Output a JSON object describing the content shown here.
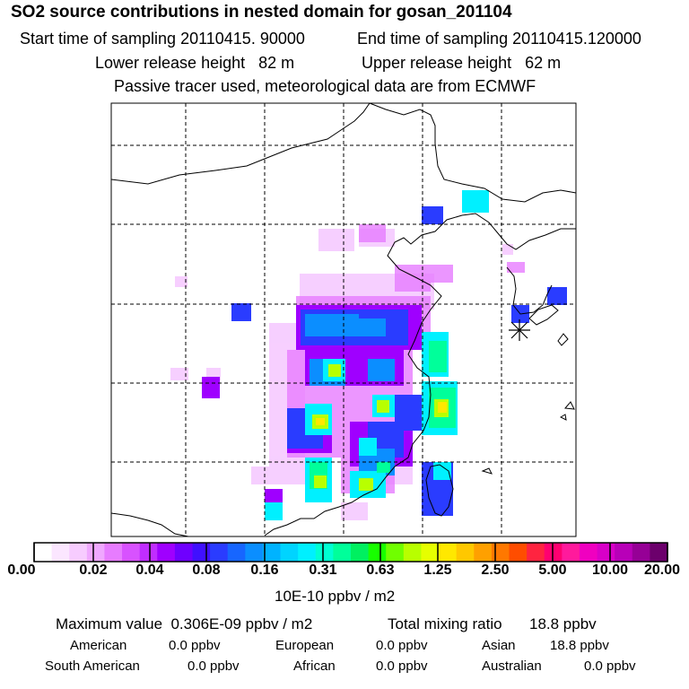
{
  "title": "SO2 source contributions in nested domain for gosan_201104",
  "sampling": {
    "start_label": "Start time of sampling 20110415. 90000",
    "end_label": "End time of sampling 20110415.120000"
  },
  "release": {
    "lower_label": "Lower release height   82 m",
    "upper_label": "Upper release height   62 m"
  },
  "note": "Passive tracer used, meteorological data are from ECMWF",
  "map": {
    "receptor": "Gosan",
    "receptor_icon": "asterisk-icon",
    "region": "East Asia nested domain"
  },
  "colorbar": {
    "colors": [
      "#ffffff",
      "#fbe6ff",
      "#f7ccff",
      "#f0a8ff",
      "#e77cff",
      "#d852ff",
      "#c02dff",
      "#9f00ff",
      "#6f00ff",
      "#4010ff",
      "#2a3cff",
      "#1766ff",
      "#0b8eff",
      "#00b3ff",
      "#00d4ff",
      "#00f0ff",
      "#00ffd2",
      "#00ff9a",
      "#00f060",
      "#18ff00",
      "#70ff00",
      "#b8ff00",
      "#e6ff00",
      "#ffe800",
      "#ffc800",
      "#ffa000",
      "#ff7800",
      "#ff4d00",
      "#ff2440",
      "#ff0070",
      "#ff1a9c",
      "#f000c0",
      "#d800c8",
      "#b800b8",
      "#960096",
      "#6c006c"
    ],
    "ticks": [
      "0.00",
      "0.02",
      "0.04",
      "0.08",
      "0.16",
      "0.31",
      "0.63",
      "1.25",
      "2.50",
      "5.00",
      "10.00",
      "20.00"
    ],
    "unit": "10E-10 ppbv / m2"
  },
  "summary": {
    "max_label": "Maximum value  0.306E-09 ppbv / m2",
    "total_label": "Total mixing ratio",
    "total_value": "18.8 ppbv"
  },
  "sources": [
    {
      "name": "American",
      "value": "0.0 ppbv"
    },
    {
      "name": "European",
      "value": "0.0 ppbv"
    },
    {
      "name": "Asian",
      "value": "18.8 ppbv"
    },
    {
      "name": "South American",
      "value": "0.0 ppbv"
    },
    {
      "name": "African",
      "value": "0.0 ppbv"
    },
    {
      "name": "Australian",
      "value": "0.0 ppbv"
    }
  ]
}
